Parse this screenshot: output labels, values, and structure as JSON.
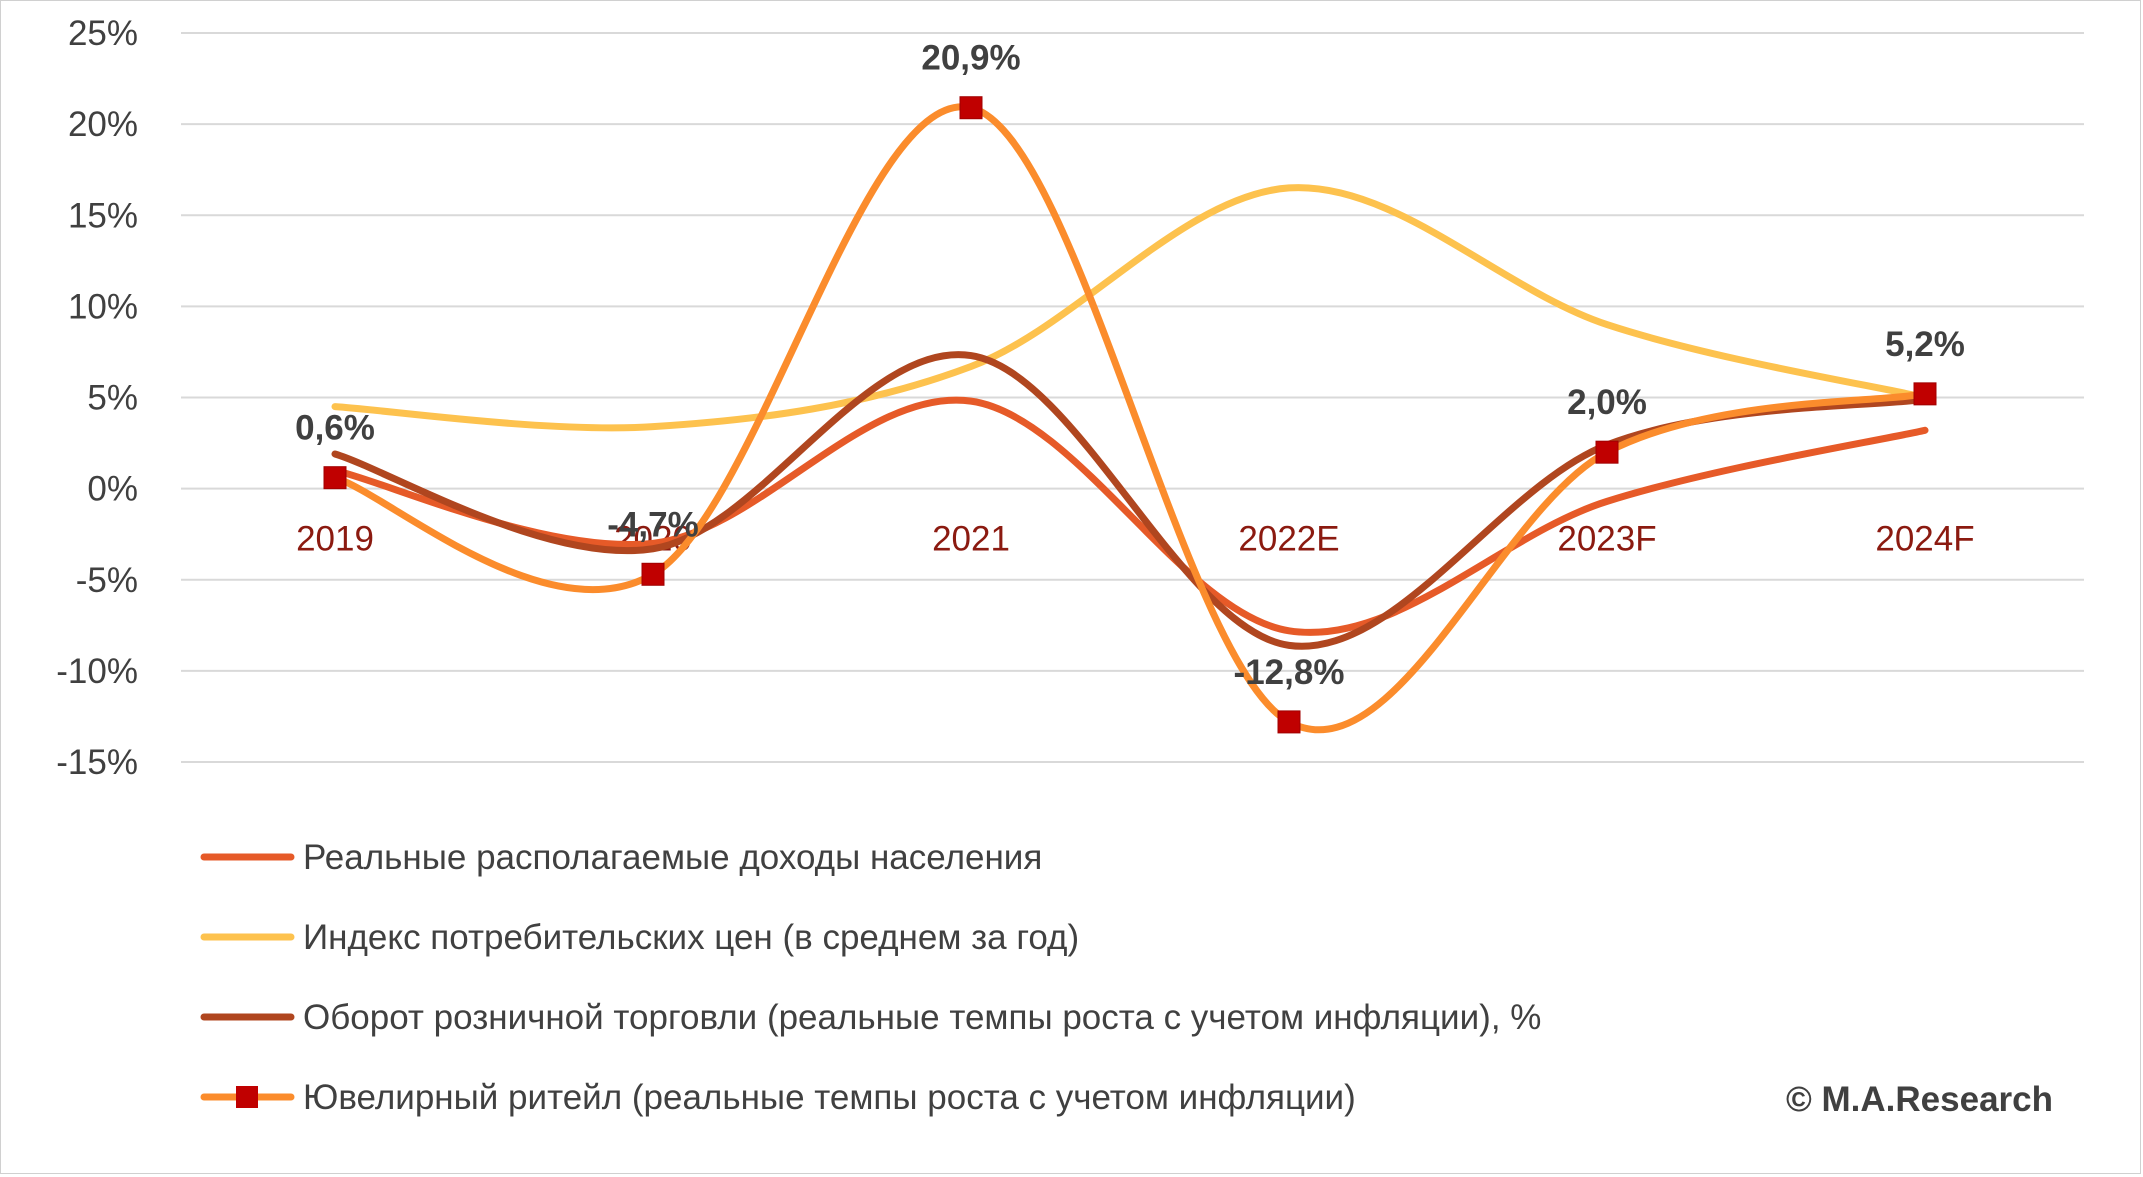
{
  "colors": {
    "income": "#e65a28",
    "cpi": "#fdc24e",
    "retail": "#b0461f",
    "jewelry": "#fb8c2c",
    "marker": "#c00000",
    "grid": "#d9d9d9",
    "category_label": "#8b1a10",
    "text": "#404040"
  },
  "chart_data": {
    "type": "line",
    "categories": [
      "2019",
      "2020",
      "2021",
      "2022E",
      "2023F",
      "2024F"
    ],
    "ylim": [
      -15,
      25
    ],
    "yticks": [
      25,
      20,
      15,
      10,
      5,
      0,
      -5,
      -10,
      -15
    ],
    "ytick_labels": [
      "25%",
      "20%",
      "15%",
      "10%",
      "5%",
      "0%",
      "-5%",
      "-10%",
      "-15%"
    ],
    "grid": true,
    "legend_position": "bottom",
    "series": [
      {
        "name": "Реальные располагаемые доходы населения",
        "color_key": "income",
        "values": [
          1.0,
          -3.0,
          4.8,
          -7.8,
          -0.7,
          3.2
        ]
      },
      {
        "name": "Индекс потребительских цен (в среднем за год)",
        "color_key": "cpi",
        "values": [
          4.5,
          3.4,
          6.7,
          16.5,
          9.0,
          5.0
        ]
      },
      {
        "name": "Оборот розничной торговли (реальные темпы роста с учетом инфляции), %",
        "color_key": "retail",
        "values": [
          1.9,
          -3.3,
          7.3,
          -8.6,
          2.4,
          4.9
        ]
      },
      {
        "name": "Ювелирный ритейл (реальные темпы роста с учетом инфляции)",
        "color_key": "jewelry",
        "values": [
          0.6,
          -4.7,
          20.9,
          -12.8,
          2.0,
          5.2
        ],
        "markers": true,
        "data_labels": [
          "0,6%",
          "-4,7%",
          "20,9%",
          "-12,8%",
          "2,0%",
          "5,2%"
        ]
      }
    ]
  },
  "watermark": "© M.A.Research"
}
